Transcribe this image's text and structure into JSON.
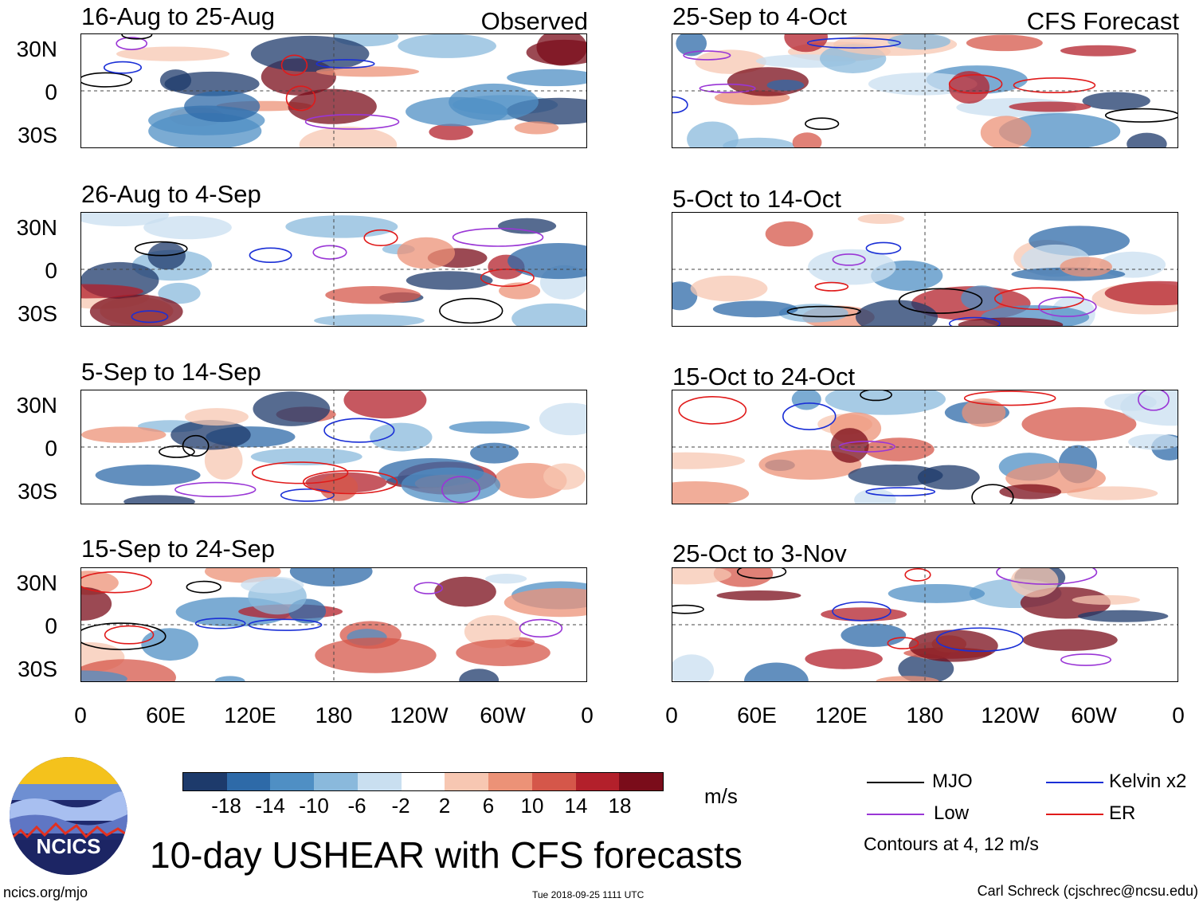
{
  "headers": {
    "left_column": "Observed",
    "right_column": "CFS Forecast"
  },
  "chart_data": {
    "type": "heatmap",
    "title": "10-day USHEAR with CFS forecasts",
    "units": "m/s",
    "panels": [
      {
        "title": "16-Aug to 25-Aug",
        "source": "Observed"
      },
      {
        "title": "26-Aug to 4-Sep",
        "source": "Observed"
      },
      {
        "title": "5-Sep to 14-Sep",
        "source": "Observed"
      },
      {
        "title": "15-Sep to 24-Sep",
        "source": "Observed"
      },
      {
        "title": "25-Sep to 4-Oct",
        "source": "CFS Forecast"
      },
      {
        "title": "5-Oct to 14-Oct",
        "source": "CFS Forecast"
      },
      {
        "title": "15-Oct to 24-Oct",
        "source": "CFS Forecast"
      },
      {
        "title": "25-Oct to 3-Nov",
        "source": "CFS Forecast"
      }
    ],
    "lat_ticks": [
      "30N",
      "0",
      "30S"
    ],
    "lon_ticks": [
      "0",
      "60E",
      "120E",
      "180",
      "120W",
      "60W",
      "0"
    ],
    "colorbar": {
      "ticks": [
        "-18",
        "-14",
        "-10",
        "-6",
        "-2",
        "2",
        "6",
        "10",
        "14",
        "18"
      ],
      "colors": [
        "#1d3a6b",
        "#2e6aa8",
        "#4f8fc4",
        "#8ab9dc",
        "#c9dff0",
        "#ffffff",
        "#f7c7b2",
        "#ec9277",
        "#d5574a",
        "#b3202b",
        "#7a0c1a"
      ]
    },
    "legend": [
      {
        "label": "MJO",
        "color": "#000000"
      },
      {
        "label": "Kelvin x2",
        "color": "#1a2fd6"
      },
      {
        "label": "Low",
        "color": "#9a36d6"
      },
      {
        "label": "ER",
        "color": "#e01a1a"
      }
    ],
    "contour_note": "Contours at 4, 12 m/s"
  },
  "logo": {
    "text": "NCICS"
  },
  "footer": {
    "url": "ncics.org/mjo",
    "timestamp": "Tue 2018-09-25 1111 UTC",
    "author": "Carl Schreck (cjschrec@ncsu.edu)"
  }
}
